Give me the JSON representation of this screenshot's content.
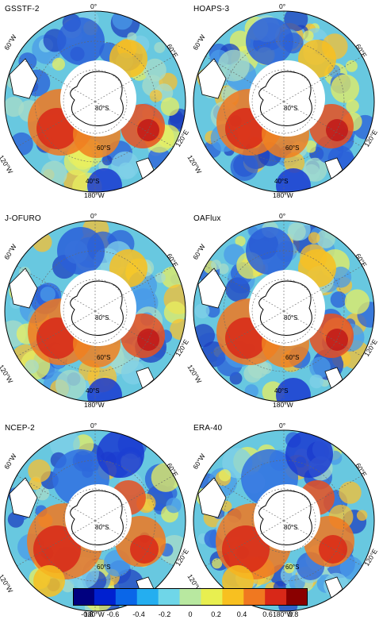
{
  "panels": [
    {
      "title": "GSSTF-2"
    },
    {
      "title": "HOAPS-3"
    },
    {
      "title": "J-OFURO"
    },
    {
      "title": "OAFlux"
    },
    {
      "title": "NCEP-2"
    },
    {
      "title": "ERA-40"
    }
  ],
  "map_labels": {
    "top": "0°",
    "bottom": "180°W",
    "upper_left": "60°W",
    "upper_right": "60°E",
    "lower_left": "120°W",
    "lower_right": "120°E",
    "lat80": "80°S",
    "lat60": "60°S",
    "lat40": "40°S"
  },
  "colorbar": {
    "ticks": [
      "-0.8",
      "-0.6",
      "-0.4",
      "-0.2",
      "0",
      "0.2",
      "0.4",
      "0.6",
      "0.8"
    ],
    "colors": [
      "#00007f",
      "#0020d0",
      "#0a66e8",
      "#24aef0",
      "#6fd6e8",
      "#b8e8a0",
      "#e8ef50",
      "#f8c020",
      "#f07820",
      "#d82818",
      "#8a0000"
    ]
  }
}
